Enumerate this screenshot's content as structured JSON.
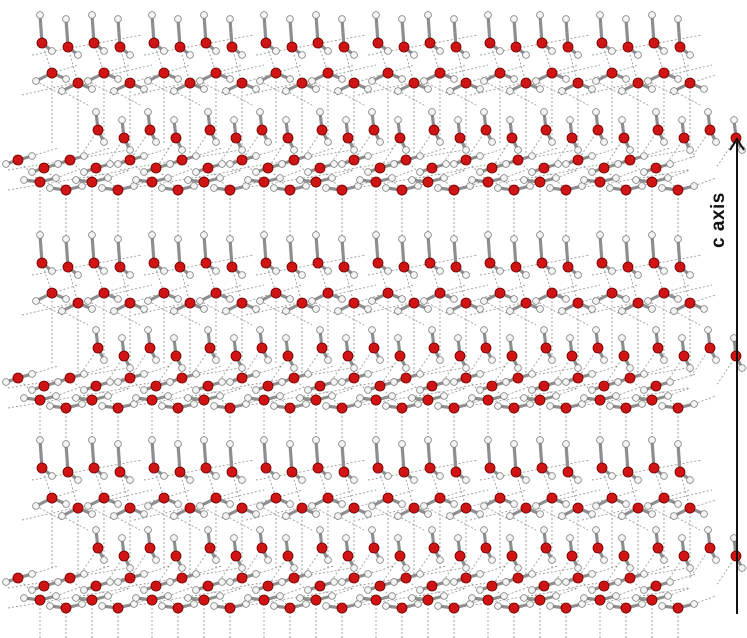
{
  "diagram": {
    "axis_label": "c axis",
    "colors": {
      "oxygen": "#d01414",
      "hydrogen": "#f4f4f4",
      "covalent_bond": "#8e8e8e",
      "hydrogen_bond": "#9a9a9a",
      "arrow": "#111111"
    }
  }
}
